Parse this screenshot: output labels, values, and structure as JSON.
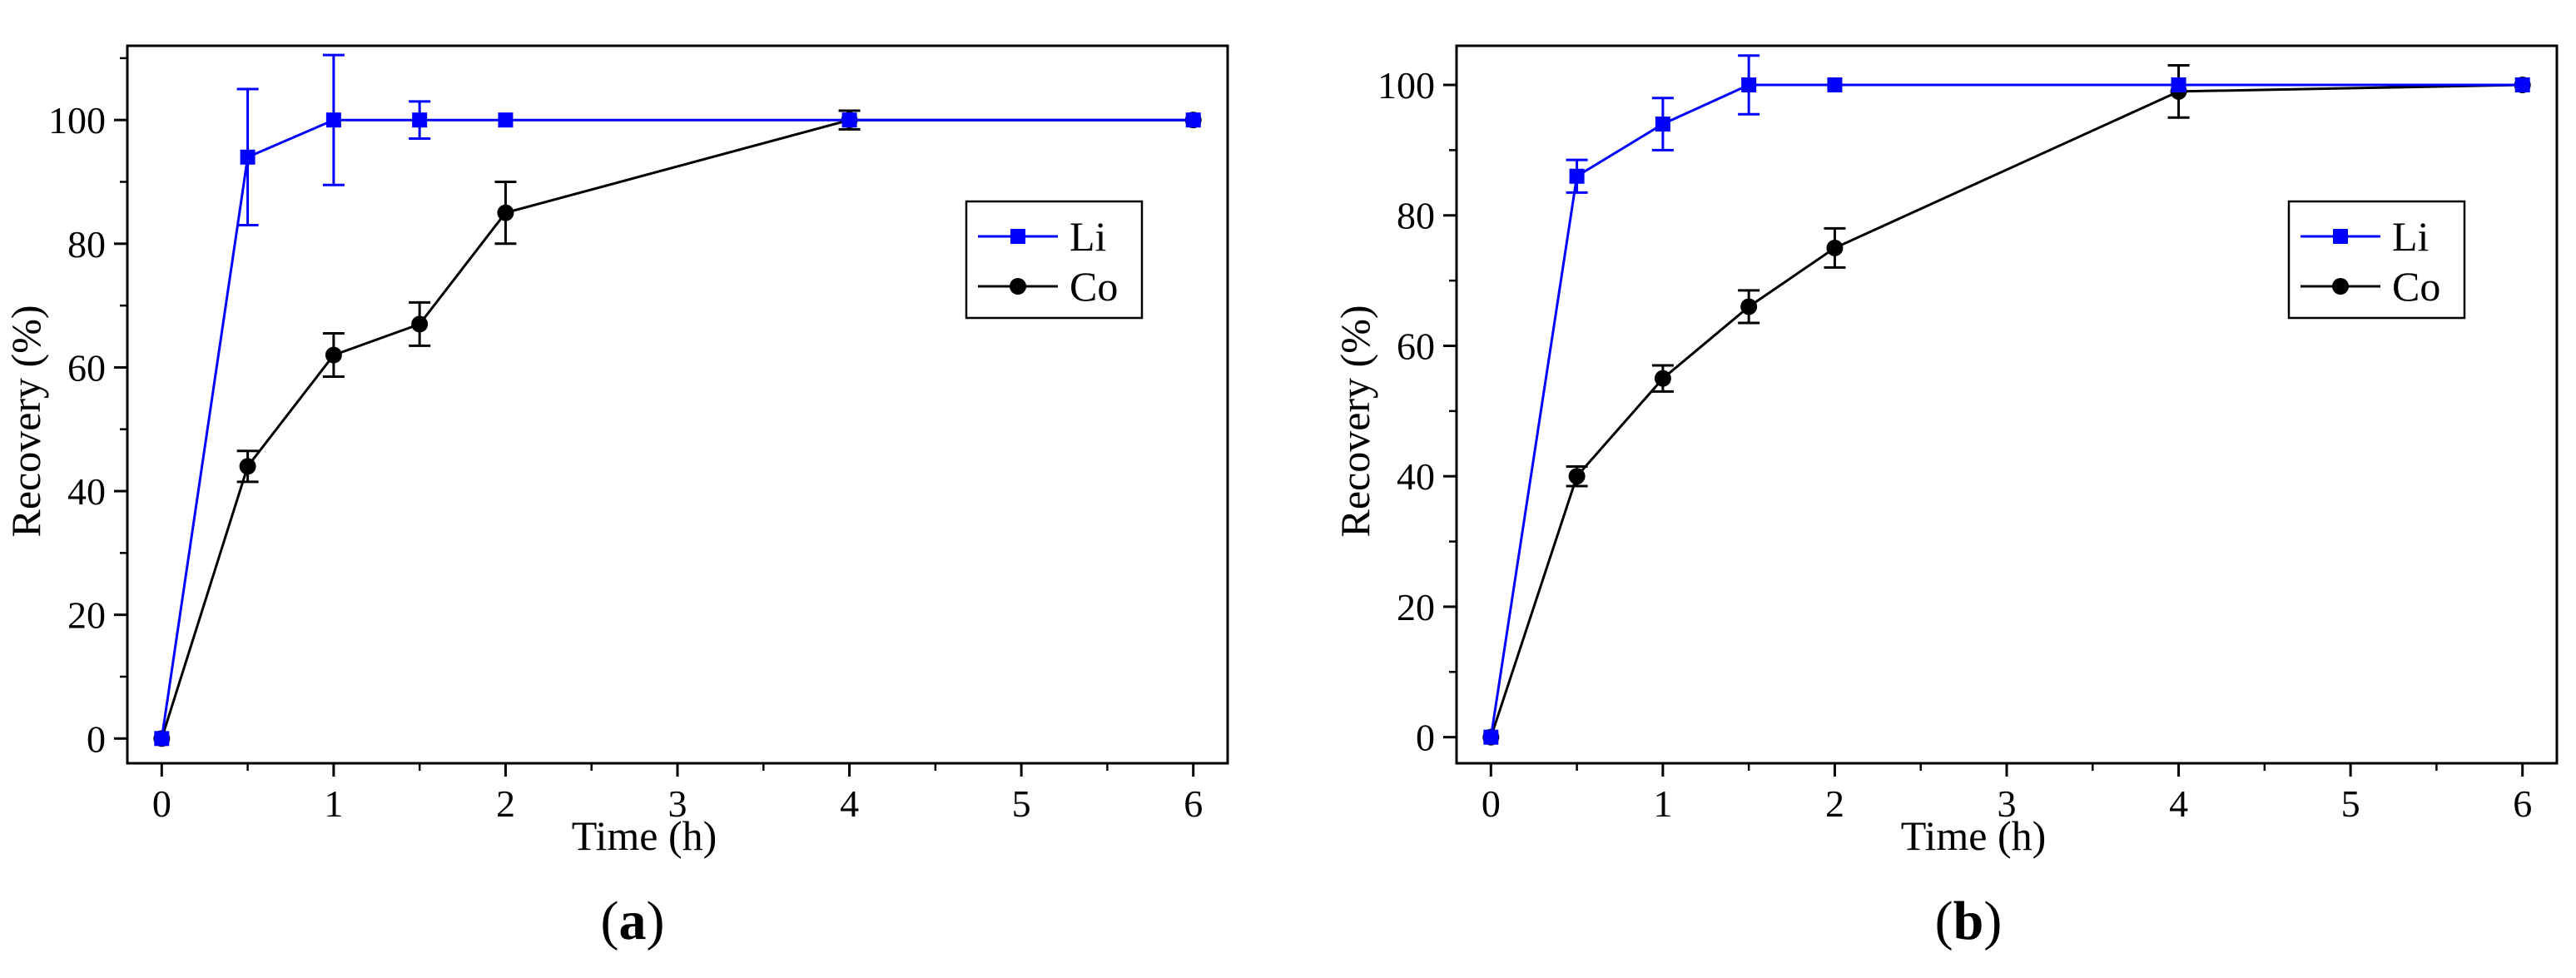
{
  "chart_data": [
    {
      "type": "line",
      "panel_label": "a",
      "xlabel": "Time (h)",
      "ylabel": "Recovery (%)",
      "xlim": [
        -0.2,
        6.2
      ],
      "ylim": [
        -4,
        112
      ],
      "x_ticks": [
        "0",
        "1",
        "2",
        "3",
        "4",
        "5",
        "6"
      ],
      "y_ticks": [
        "0",
        "20",
        "40",
        "60",
        "80",
        "100"
      ],
      "legend_position": "right",
      "series": [
        {
          "name": "Li",
          "color": "#0000ff",
          "marker": "square",
          "x": [
            0,
            0.5,
            1,
            1.5,
            2,
            4,
            6
          ],
          "values": [
            0,
            94,
            100,
            100,
            100,
            100,
            100
          ],
          "errors": [
            0,
            11,
            10.5,
            3,
            0,
            0,
            0
          ]
        },
        {
          "name": "Co",
          "color": "#000000",
          "marker": "circle",
          "x": [
            0,
            0.5,
            1,
            1.5,
            2,
            4,
            6
          ],
          "values": [
            0,
            44,
            62,
            67,
            85,
            100,
            100
          ],
          "errors": [
            0,
            2.5,
            3.5,
            3.5,
            5,
            1.5,
            0
          ]
        }
      ]
    },
    {
      "type": "line",
      "panel_label": "b",
      "xlabel": "Time (h)",
      "ylabel": "Recovery (%)",
      "xlim": [
        -0.2,
        6.2
      ],
      "ylim": [
        -4,
        106
      ],
      "x_ticks": [
        "0",
        "1",
        "2",
        "3",
        "4",
        "5",
        "6"
      ],
      "y_ticks": [
        "0",
        "20",
        "40",
        "60",
        "80",
        "100"
      ],
      "legend_position": "right",
      "series": [
        {
          "name": "Li",
          "color": "#0000ff",
          "marker": "square",
          "x": [
            0,
            0.5,
            1,
            1.5,
            2,
            4,
            6
          ],
          "values": [
            0,
            86,
            94,
            100,
            100,
            100,
            100
          ],
          "errors": [
            0,
            2.5,
            4,
            4.5,
            0,
            0,
            0
          ]
        },
        {
          "name": "Co",
          "color": "#000000",
          "marker": "circle",
          "x": [
            0,
            0.5,
            1,
            1.5,
            2,
            4,
            6
          ],
          "values": [
            0,
            40,
            55,
            66,
            75,
            99,
            100
          ],
          "errors": [
            0,
            1.5,
            2,
            2.5,
            3,
            4,
            0
          ]
        }
      ]
    }
  ]
}
